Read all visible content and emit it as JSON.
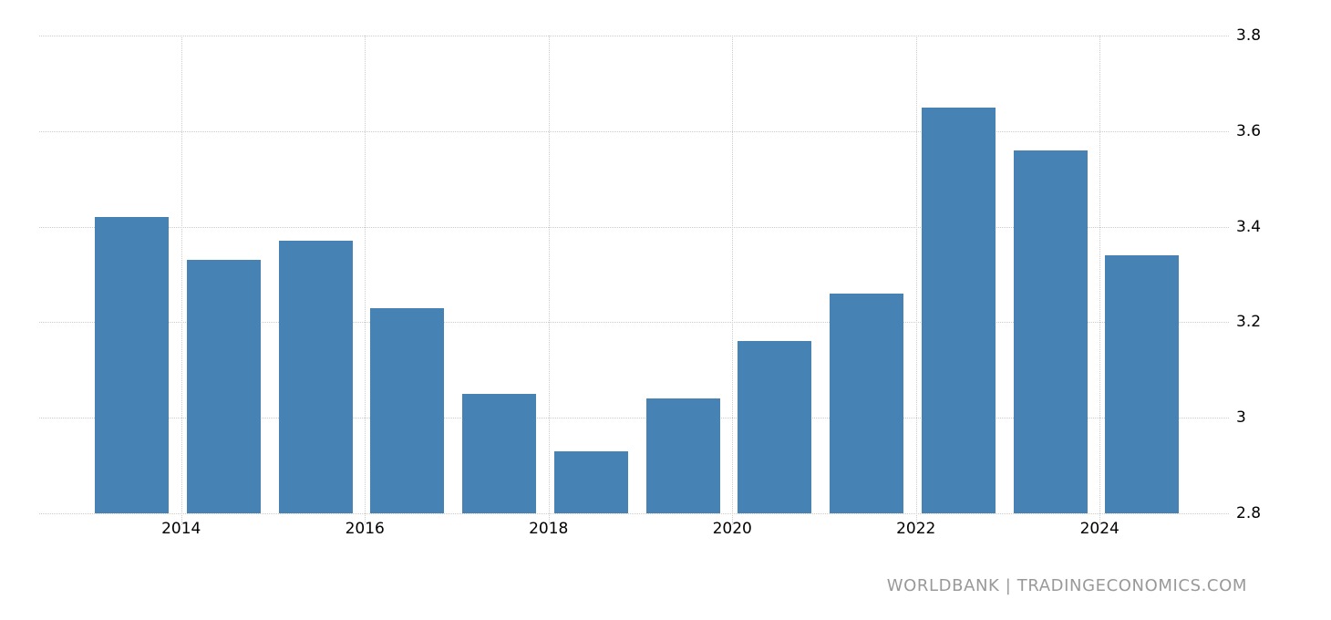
{
  "attribution": "WORLDBANK | TRADINGECONOMICS.COM",
  "chart_data": {
    "type": "bar",
    "categories": [
      "2013",
      "2014",
      "2015",
      "2016",
      "2017",
      "2018",
      "2019",
      "2020",
      "2021",
      "2022",
      "2023",
      "2024"
    ],
    "values": [
      3.42,
      3.33,
      3.37,
      3.23,
      3.05,
      2.93,
      3.04,
      3.16,
      3.26,
      3.65,
      3.56,
      3.34
    ],
    "title": "",
    "xlabel": "",
    "ylabel": "",
    "ylim": [
      2.8,
      3.8
    ],
    "yticks": [
      2.8,
      3.0,
      3.2,
      3.4,
      3.6,
      3.8
    ],
    "ytick_labels": [
      "2.8",
      "3",
      "3.2",
      "3.4",
      "3.6",
      "3.8"
    ],
    "xtick_labels": [
      "2014",
      "2016",
      "2018",
      "2020",
      "2022",
      "2024"
    ],
    "legend": "none",
    "grid": "dotted-horizontal-and-ticks",
    "bar_color": "#4682b4",
    "grid_color": "#cccccc",
    "axis_label_color": "#000000",
    "attribution_color": "#999999"
  }
}
